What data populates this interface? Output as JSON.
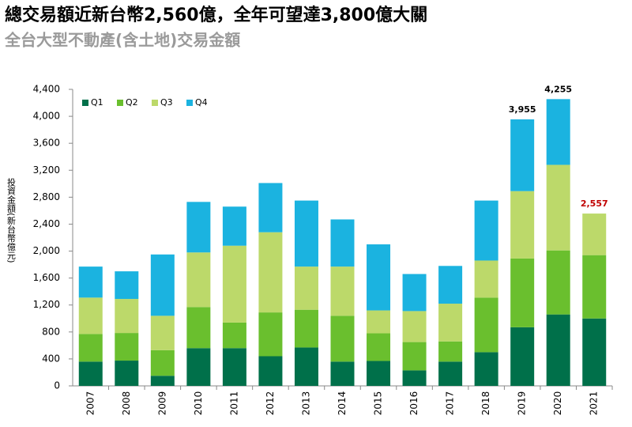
{
  "chart_data": {
    "type": "stacked_bar",
    "title": "總交易額近新台幣2,560億，全年可望達3,800億大關",
    "subtitle": "全台大型不動產(含土地)交易金額",
    "y_label": "投資金額(新台幣億元)",
    "categories": [
      "2007",
      "2008",
      "2009",
      "2010",
      "2011",
      "2012",
      "2013",
      "2014",
      "2015",
      "2016",
      "2017",
      "2018",
      "2019",
      "2020",
      "2021"
    ],
    "series": [
      {
        "name": "Q1",
        "color": "#00704a",
        "values": [
          360,
          375,
          150,
          560,
          560,
          440,
          570,
          360,
          370,
          230,
          360,
          500,
          870,
          1060,
          1000
        ]
      },
      {
        "name": "Q2",
        "color": "#6abf2e",
        "values": [
          410,
          410,
          380,
          610,
          380,
          650,
          560,
          680,
          410,
          420,
          300,
          810,
          1020,
          950,
          940
        ]
      },
      {
        "name": "Q3",
        "color": "#bcd96a",
        "values": [
          540,
          505,
          510,
          810,
          1140,
          1190,
          640,
          730,
          340,
          460,
          560,
          550,
          1000,
          1270,
          617
        ]
      },
      {
        "name": "Q4",
        "color": "#1bb3e0",
        "values": [
          460,
          410,
          910,
          750,
          580,
          730,
          980,
          700,
          980,
          550,
          560,
          890,
          1065,
          975,
          null
        ]
      }
    ],
    "totals": [
      null,
      null,
      null,
      null,
      null,
      null,
      null,
      null,
      null,
      null,
      null,
      null,
      3955,
      4255,
      2557
    ],
    "total_labels": [
      null,
      null,
      null,
      null,
      null,
      null,
      null,
      null,
      null,
      null,
      null,
      null,
      "3,955",
      "4,255",
      "2,557"
    ],
    "total_colors": [
      null,
      null,
      null,
      null,
      null,
      null,
      null,
      null,
      null,
      null,
      null,
      null,
      "#000000",
      "#000000",
      "#c00000"
    ],
    "ylim": [
      0,
      4400
    ],
    "yticks": [
      0,
      400,
      800,
      {
        "value": 1200,
        "label": "1,200"
      },
      {
        "value": 1600,
        "label": "1,600"
      },
      {
        "value": 2000,
        "label": "2,000"
      },
      {
        "value": 2400,
        "label": "2,400"
      },
      {
        "value": 2800,
        "label": "2,800"
      },
      {
        "value": 3200,
        "label": "3,200"
      },
      {
        "value": 3600,
        "label": "3,600"
      },
      {
        "value": 4000,
        "label": "4,000"
      },
      {
        "value": 4400,
        "label": "4,400"
      }
    ],
    "grid": false,
    "legend": "top-left"
  }
}
